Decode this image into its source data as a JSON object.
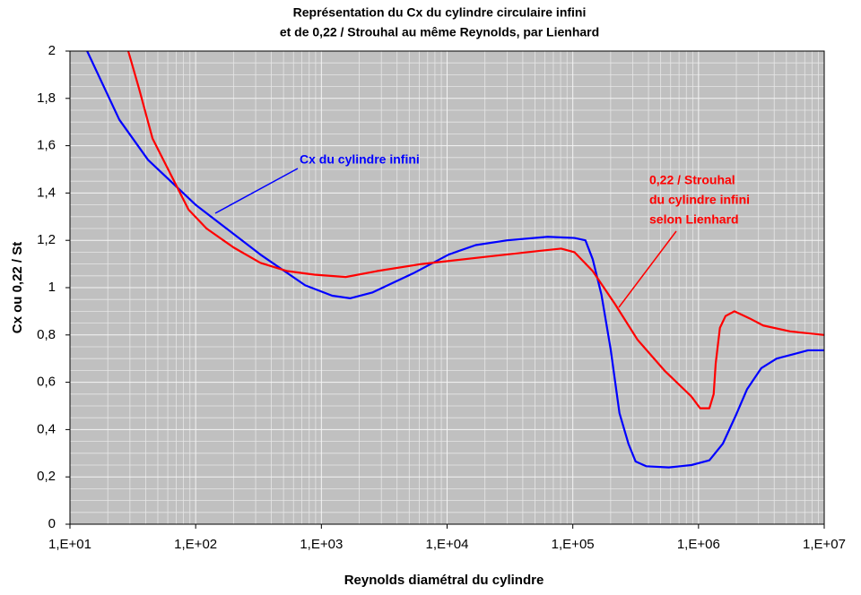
{
  "chart_data": {
    "type": "line",
    "title": [
      "Représentation du Cx du cylindre circulaire infini",
      "et de 0,22 / Strouhal au même Reynolds, par Lienhard"
    ],
    "x_label": "Reynolds diamétral du cylindre",
    "y_label": "Cx  ou  0,22 / St",
    "xscale": "log",
    "xlim": [
      10,
      10000000
    ],
    "xticks": [
      {
        "value": 10,
        "label": "1,E+01"
      },
      {
        "value": 100,
        "label": "1,E+02"
      },
      {
        "value": 1000,
        "label": "1,E+03"
      },
      {
        "value": 10000,
        "label": "1,E+04"
      },
      {
        "value": 100000,
        "label": "1,E+05"
      },
      {
        "value": 1000000,
        "label": "1,E+06"
      },
      {
        "value": 10000000,
        "label": "1,E+07"
      }
    ],
    "ylim": [
      0,
      2
    ],
    "yticks": [
      0,
      {
        "value": 0.2,
        "label": "0,2"
      },
      {
        "value": 0.4,
        "label": "0,4"
      },
      {
        "value": 0.6,
        "label": "0,6"
      },
      {
        "value": 0.8,
        "label": "0,8"
      },
      1,
      {
        "value": 1.2,
        "label": "1,2"
      },
      {
        "value": 1.4,
        "label": "1,4"
      },
      {
        "value": 1.6,
        "label": "1,6"
      },
      {
        "value": 1.8,
        "label": "1,8"
      },
      2
    ],
    "grid": true,
    "minor_grid": true,
    "series": [
      {
        "name": "Cx du cylindre infini",
        "color": "#0000ff",
        "x": [
          13.7,
          24.7,
          41.8,
          100,
          327,
          743,
          1220,
          1690,
          2560,
          5350,
          10300,
          16900,
          30100,
          63100,
          103000,
          126000,
          144000,
          169000,
          200000,
          235000,
          277000,
          316000,
          385000,
          581000,
          877000,
          1220000,
          1560000,
          2000000,
          2430000,
          3160000,
          4180000,
          7430000,
          10000000
        ],
        "values": [
          2.0,
          1.71,
          1.54,
          1.35,
          1.14,
          1.01,
          0.966,
          0.955,
          0.98,
          1.06,
          1.14,
          1.18,
          1.2,
          1.215,
          1.21,
          1.2,
          1.12,
          0.97,
          0.74,
          0.47,
          0.34,
          0.265,
          0.245,
          0.24,
          0.25,
          0.27,
          0.34,
          0.465,
          0.57,
          0.66,
          0.7,
          0.735,
          0.735
        ]
      },
      {
        "name_lines": [
          "0,22 / Strouhal",
          "du cylindre infini",
          "selon Lienhard"
        ],
        "color": "#ff0000",
        "x": [
          29.1,
          35.5,
          45.4,
          63.1,
          87.7,
          122,
          200,
          327,
          535,
          877,
          1560,
          2770,
          6310,
          20000,
          53500,
          80700,
          103000,
          144000,
          217000,
          327000,
          535000,
          877000,
          1030000,
          1220000,
          1320000,
          1370000,
          1480000,
          1640000,
          1930000,
          2550000,
          3270000,
          5350000,
          10000000
        ],
        "values": [
          2.0,
          1.84,
          1.63,
          1.48,
          1.33,
          1.25,
          1.17,
          1.105,
          1.07,
          1.055,
          1.045,
          1.07,
          1.1,
          1.13,
          1.155,
          1.165,
          1.15,
          1.07,
          0.93,
          0.78,
          0.65,
          0.54,
          0.49,
          0.49,
          0.55,
          0.68,
          0.83,
          0.88,
          0.9,
          0.87,
          0.84,
          0.815,
          0.8
        ]
      }
    ]
  }
}
